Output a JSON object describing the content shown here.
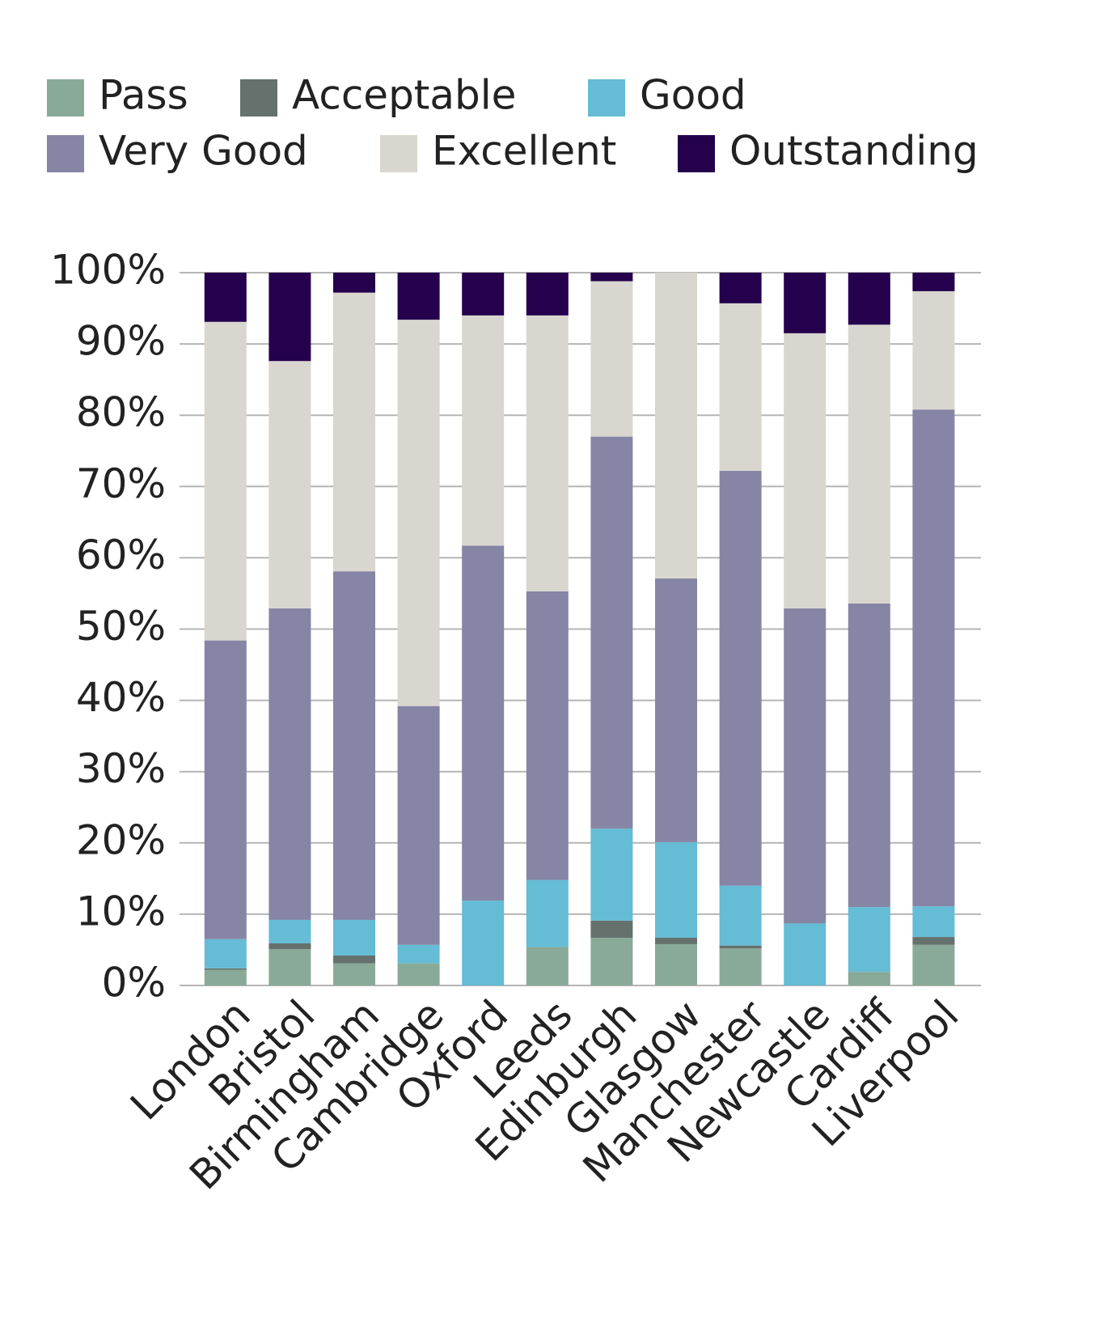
{
  "chart_data": {
    "type": "stacked_bar",
    "categories": [
      "London",
      "Bristol",
      "Birmingham",
      "Cambridge",
      "Oxford",
      "Leeds",
      "Edinburgh",
      "Glasgow",
      "Manchester",
      "Newcastle",
      "Cardiff",
      "Liverpool"
    ],
    "series": [
      {
        "name": "Pass",
        "color": "#89aa98",
        "values": [
          2.2,
          5.1,
          3.1,
          3.1,
          0,
          5.4,
          6.7,
          5.8,
          5.2,
          0,
          1.9,
          5.7
        ]
      },
      {
        "name": "Acceptable",
        "color": "#64716d",
        "values": [
          0.2,
          0.8,
          1.1,
          0,
          0,
          0,
          2.4,
          0.9,
          0.4,
          0,
          0,
          1.1
        ]
      },
      {
        "name": "Good",
        "color": "#64bcd5",
        "values": [
          4.1,
          3.3,
          5.0,
          2.6,
          11.9,
          9.4,
          12.9,
          13.4,
          8.4,
          8.7,
          9.1,
          4.3
        ]
      },
      {
        "name": "Very Good",
        "color": "#8685a5",
        "values": [
          41.9,
          43.7,
          48.9,
          33.5,
          49.8,
          40.5,
          55.0,
          37.0,
          58.2,
          44.2,
          42.6,
          69.7
        ]
      },
      {
        "name": "Excellent",
        "color": "#d9d6cf",
        "values": [
          44.7,
          34.7,
          39.1,
          54.2,
          32.3,
          38.7,
          21.8,
          42.9,
          23.5,
          38.6,
          39.1,
          16.6
        ]
      },
      {
        "name": "Outstanding",
        "color": "#24004d",
        "values": [
          6.9,
          12.4,
          2.8,
          6.6,
          6.0,
          6.0,
          1.2,
          0,
          4.3,
          8.5,
          7.3,
          2.6
        ]
      }
    ],
    "ylim": [
      0,
      100
    ],
    "yticks": [
      {
        "value": 0,
        "label": "0%"
      },
      {
        "value": 10,
        "label": "10%"
      },
      {
        "value": 20,
        "label": "20%"
      },
      {
        "value": 30,
        "label": "30%"
      },
      {
        "value": 40,
        "label": "40%"
      },
      {
        "value": 50,
        "label": "50%"
      },
      {
        "value": 60,
        "label": "60%"
      },
      {
        "value": 70,
        "label": "70%"
      },
      {
        "value": 80,
        "label": "80%"
      },
      {
        "value": 90,
        "label": "90%"
      },
      {
        "value": 100,
        "label": "100%"
      }
    ],
    "grid": true
  }
}
